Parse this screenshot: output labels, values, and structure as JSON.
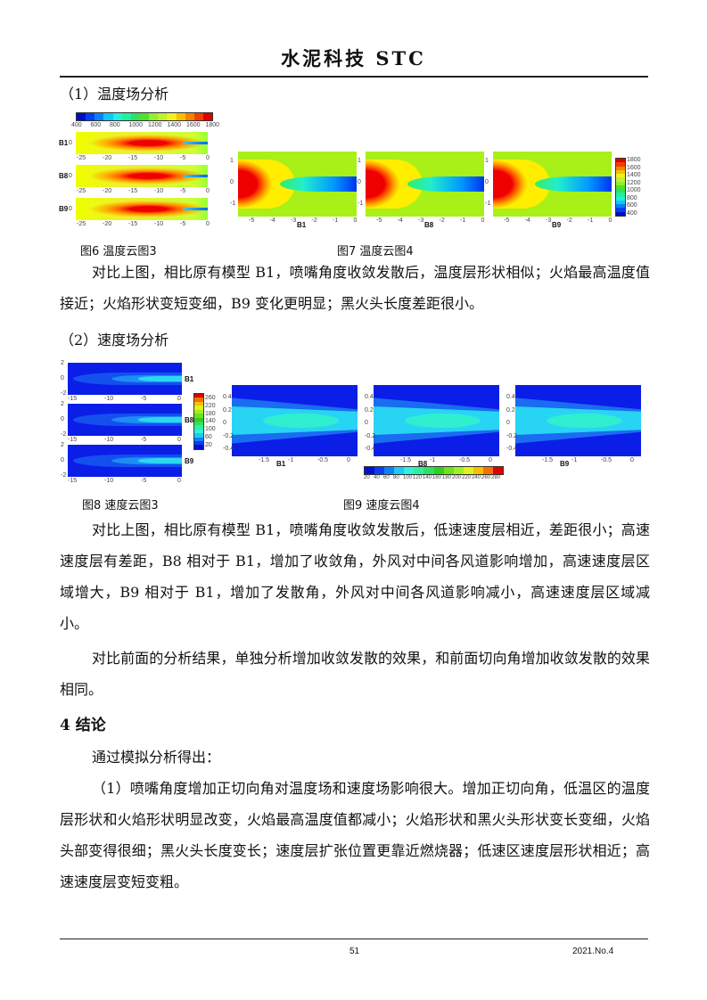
{
  "header": {
    "title": "水泥科技  STC"
  },
  "section1": {
    "title": "（1）温度场分析"
  },
  "fig6": {
    "caption": "图6   温度云图3",
    "colorbar_labels": [
      "400",
      "600",
      "800",
      "1000",
      "1200",
      "1400",
      "1600",
      "1800"
    ],
    "plots": [
      "B1",
      "B8",
      "B9"
    ],
    "x_ticks": [
      "-25",
      "-20",
      "-15",
      "-10",
      "-5",
      "0"
    ],
    "y_tick": "0"
  },
  "fig7": {
    "caption": "图7   温度云图4",
    "plots": [
      "B1",
      "B8",
      "B9"
    ],
    "x_ticks": [
      "-5",
      "-4",
      "-3",
      "-2",
      "-1",
      "0"
    ],
    "y_ticks": [
      "1",
      "0",
      "-1"
    ],
    "colorbar_labels": [
      "1800",
      "1600",
      "1400",
      "1200",
      "1000",
      "800",
      "600",
      "400"
    ]
  },
  "para1": "对比上图，相比原有模型 B1，喷嘴角度收敛发散后，温度层形状相似；火焰最高温度值接近；火焰形状变短变细，B9 变化更明显；黑火头长度差距很小。",
  "section2": {
    "title": "（2）速度场分析"
  },
  "fig8": {
    "caption": "图8   速度云图3",
    "plots": [
      "B1",
      "B8",
      "B9"
    ],
    "x_ticks": [
      "-15",
      "-10",
      "-5",
      "0"
    ],
    "y_ticks": [
      "2",
      "0",
      "-2"
    ],
    "colorbar_labels": [
      "260",
      "220",
      "180",
      "140",
      "100",
      "60",
      "20"
    ]
  },
  "fig9": {
    "caption": "图9  速度云图4",
    "plots": [
      "B1",
      "B8",
      "B9"
    ],
    "x_ticks": [
      "-1.5",
      "-1",
      "-0.5",
      "0"
    ],
    "y_ticks": [
      "0.4",
      "0.2",
      "0",
      "-0.2",
      "-0.4"
    ],
    "colorbar_labels": [
      "20",
      "40",
      "60",
      "80",
      "100",
      "120",
      "140",
      "160",
      "180",
      "200",
      "220",
      "240",
      "260",
      "280"
    ]
  },
  "para2": "对比上图，相比原有模型 B1，喷嘴角度收敛发散后，低速速度层相近，差距很小；高速速度层有差距，B8 相对于 B1，增加了收敛角，外风对中间各风道影响增加，高速速度层区域增大，B9 相对于 B1，增加了发散角，外风对中间各风道影响减小，高速速度层区域减小。",
  "para3": "对比前面的分析结果，单独分析增加收敛发散的效果，和前面切向角增加收敛发散的效果相同。",
  "section4": {
    "title": "4  结论"
  },
  "para4": "通过模拟分析得出：",
  "para5": "（1）喷嘴角度增加正切向角对温度场和速度场影响很大。增加正切向角，低温区的温度层形状和火焰形状明显改变，火焰最高温度值都减小；火焰形状和黑火头形状变长变细，火焰头部变得很细；黑火头长度变长；速度层扩张位置更靠近燃烧器；低速区速度层形状相近；高速速度层变短变粗。",
  "footer": {
    "page": "51",
    "issue": "2021.No.4"
  },
  "colors": {
    "hot": "#e00000",
    "cold": "#0a1ee8",
    "ambient": "#a8f018"
  }
}
